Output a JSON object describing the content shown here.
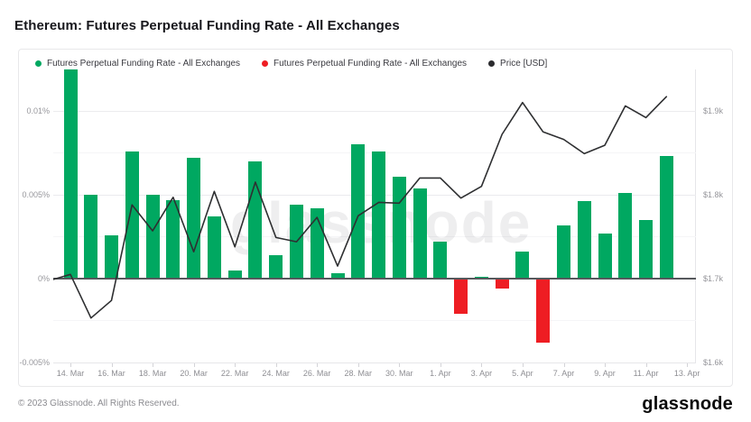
{
  "title": "Ethereum: Futures Perpetual Funding Rate - All Exchanges",
  "legend": [
    {
      "label": "Futures Perpetual Funding Rate - All Exchanges",
      "color": "#00a861"
    },
    {
      "label": "Futures Perpetual Funding Rate - All Exchanges",
      "color": "#ee1d23"
    },
    {
      "label": "Price [USD]",
      "color": "#2b2b2e"
    }
  ],
  "watermark": "glassnode",
  "footer": {
    "copyright": "© 2023 Glassnode. All Rights Reserved.",
    "logo": "glassnode"
  },
  "chart_data": {
    "type": "bar+line",
    "title": "Ethereum: Futures Perpetual Funding Rate - All Exchanges",
    "x_tick_labels": [
      "14. Mar",
      "16. Mar",
      "18. Mar",
      "20. Mar",
      "22. Mar",
      "24. Mar",
      "26. Mar",
      "28. Mar",
      "30. Mar",
      "1. Apr",
      "3. Apr",
      "5. Apr",
      "7. Apr",
      "9. Apr",
      "11. Apr",
      "13. Apr"
    ],
    "dates": [
      "14 Mar",
      "15 Mar",
      "16 Mar",
      "17 Mar",
      "18 Mar",
      "19 Mar",
      "20 Mar",
      "21 Mar",
      "22 Mar",
      "23 Mar",
      "24 Mar",
      "25 Mar",
      "26 Mar",
      "27 Mar",
      "28 Mar",
      "29 Mar",
      "30 Mar",
      "31 Mar",
      "1 Apr",
      "2 Apr",
      "3 Apr",
      "4 Apr",
      "5 Apr",
      "6 Apr",
      "7 Apr",
      "8 Apr",
      "9 Apr",
      "10 Apr",
      "11 Apr",
      "12 Apr"
    ],
    "series": [
      {
        "name": "Futures Perpetual Funding Rate - All Exchanges",
        "type": "bar",
        "unit": "%",
        "positive_color": "#00a861",
        "negative_color": "#ee1d23",
        "values": [
          0.0125,
          0.005,
          0.0026,
          0.0076,
          0.005,
          0.0047,
          0.0072,
          0.0037,
          0.0005,
          0.007,
          0.0014,
          0.0044,
          0.0042,
          0.0003,
          0.008,
          0.0076,
          0.0061,
          0.0054,
          0.0022,
          -0.0021,
          0.0001,
          -0.0006,
          0.0016,
          -0.0038,
          0.0032,
          0.0046,
          0.0027,
          0.0051,
          0.0035,
          0.0073
        ],
        "first_bar_clipped_at_axis_top": true
      },
      {
        "name": "Price [USD]",
        "type": "line",
        "unit": "USD",
        "color": "#2e2f31",
        "edge_start_value": 1699,
        "values": [
          1705,
          1653,
          1674,
          1788,
          1757,
          1797,
          1732,
          1804,
          1738,
          1815,
          1749,
          1744,
          1773,
          1715,
          1775,
          1791,
          1790,
          1820,
          1820,
          1796,
          1810,
          1872,
          1910,
          1875,
          1866,
          1849,
          1859,
          1906,
          1892,
          1917
        ]
      }
    ],
    "left_axis": {
      "tick_labels": [
        "0.01%",
        "0.005%",
        "0%",
        "-0.005%"
      ],
      "tick_values": [
        0.01,
        0.005,
        0,
        -0.005
      ],
      "range": [
        -0.005,
        0.0125
      ],
      "grid": true
    },
    "right_axis": {
      "tick_labels": [
        "$1.9k",
        "$1.8k",
        "$1.7k",
        "$1.6k"
      ],
      "tick_values": [
        1900,
        1800,
        1700,
        1600
      ],
      "range": [
        1600,
        1950
      ]
    },
    "legend_position": "top-left"
  }
}
